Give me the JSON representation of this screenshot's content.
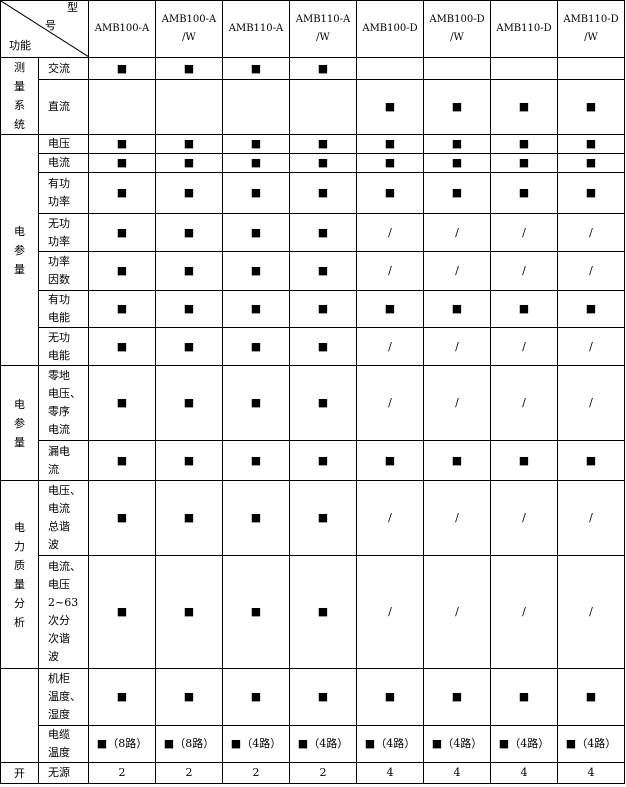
{
  "header": {
    "corner": [
      "型",
      "号",
      "功能"
    ],
    "models": [
      "AMB100-A",
      "AMB100-A\n/W",
      "AMB110-A",
      "AMB110-A\n/W",
      "AMB100-D",
      "AMB100-D\n/W",
      "AMB110-D",
      "AMB110-D\n/W"
    ]
  },
  "groups": [
    {
      "label": "测量系统",
      "rows": [
        {
          "item": "交流",
          "cells": [
            "■",
            "■",
            "■",
            "■",
            null,
            null,
            null,
            null
          ]
        },
        {
          "item": "直流",
          "cells": [
            null,
            null,
            null,
            null,
            "■",
            "■",
            "■",
            "■"
          ]
        }
      ]
    },
    {
      "label": "电参量",
      "rows": [
        {
          "item": "电压",
          "cells": [
            "■",
            "■",
            "■",
            "■",
            "■",
            "■",
            "■",
            "■"
          ]
        },
        {
          "item": "电流",
          "cells": [
            "■",
            "■",
            "■",
            "■",
            "■",
            "■",
            "■",
            "■"
          ]
        },
        {
          "item": "有功\n功率",
          "cells": [
            "■",
            "■",
            "■",
            "■",
            "■",
            "■",
            "■",
            "■"
          ]
        },
        {
          "item": "无功\n功率",
          "cells": [
            "■",
            "■",
            "■",
            "■",
            "/",
            "/",
            "/",
            "/"
          ]
        },
        {
          "item": "功率\n因数",
          "cells": [
            "■",
            "■",
            "■",
            "■",
            "/",
            "/",
            "/",
            "/"
          ]
        },
        {
          "item": "有功\n电能",
          "cells": [
            "■",
            "■",
            "■",
            "■",
            "■",
            "■",
            "■",
            "■"
          ]
        },
        {
          "item": "无功\n电能",
          "cells": [
            "■",
            "■",
            "■",
            "■",
            "/",
            "/",
            "/",
            "/"
          ]
        }
      ]
    },
    {
      "label": "电参量",
      "rows": [
        {
          "item": "零地\n电压、\n零序\n电流",
          "cells": [
            "■",
            "■",
            "■",
            "■",
            "/",
            "/",
            "/",
            "/"
          ]
        },
        {
          "item": "漏电\n流",
          "cells": [
            "■",
            "■",
            "■",
            "■",
            "■",
            "■",
            "■",
            "■"
          ]
        }
      ]
    },
    {
      "label": "电力质量分析",
      "rows": [
        {
          "item": "电压、\n电流\n总谐\n波",
          "cells": [
            "■",
            "■",
            "■",
            "■",
            "/",
            "/",
            "/",
            "/"
          ]
        },
        {
          "item": "电流、\n电压\n2~63\n次分\n次谐\n波",
          "cells": [
            "■",
            "■",
            "■",
            "■",
            "/",
            "/",
            "/",
            "/"
          ]
        }
      ]
    },
    {
      "label": null,
      "rows": [
        {
          "item": "机柜\n温度、\n湿度",
          "cells": [
            "■",
            "■",
            "■",
            "■",
            "■",
            "■",
            "■",
            "■"
          ]
        },
        {
          "item": "电缆\n温度",
          "cells": [
            "■（8路）",
            "■（8路）",
            "■（4路）",
            "■（4路）",
            "■（4路）",
            "■（4路）",
            "■（4路）",
            "■（4路）"
          ]
        }
      ]
    },
    {
      "label": "开",
      "rows": [
        {
          "item": "无源",
          "cells": [
            "2",
            "2",
            "2",
            "2",
            "4",
            "4",
            "4",
            "4"
          ]
        }
      ]
    }
  ]
}
